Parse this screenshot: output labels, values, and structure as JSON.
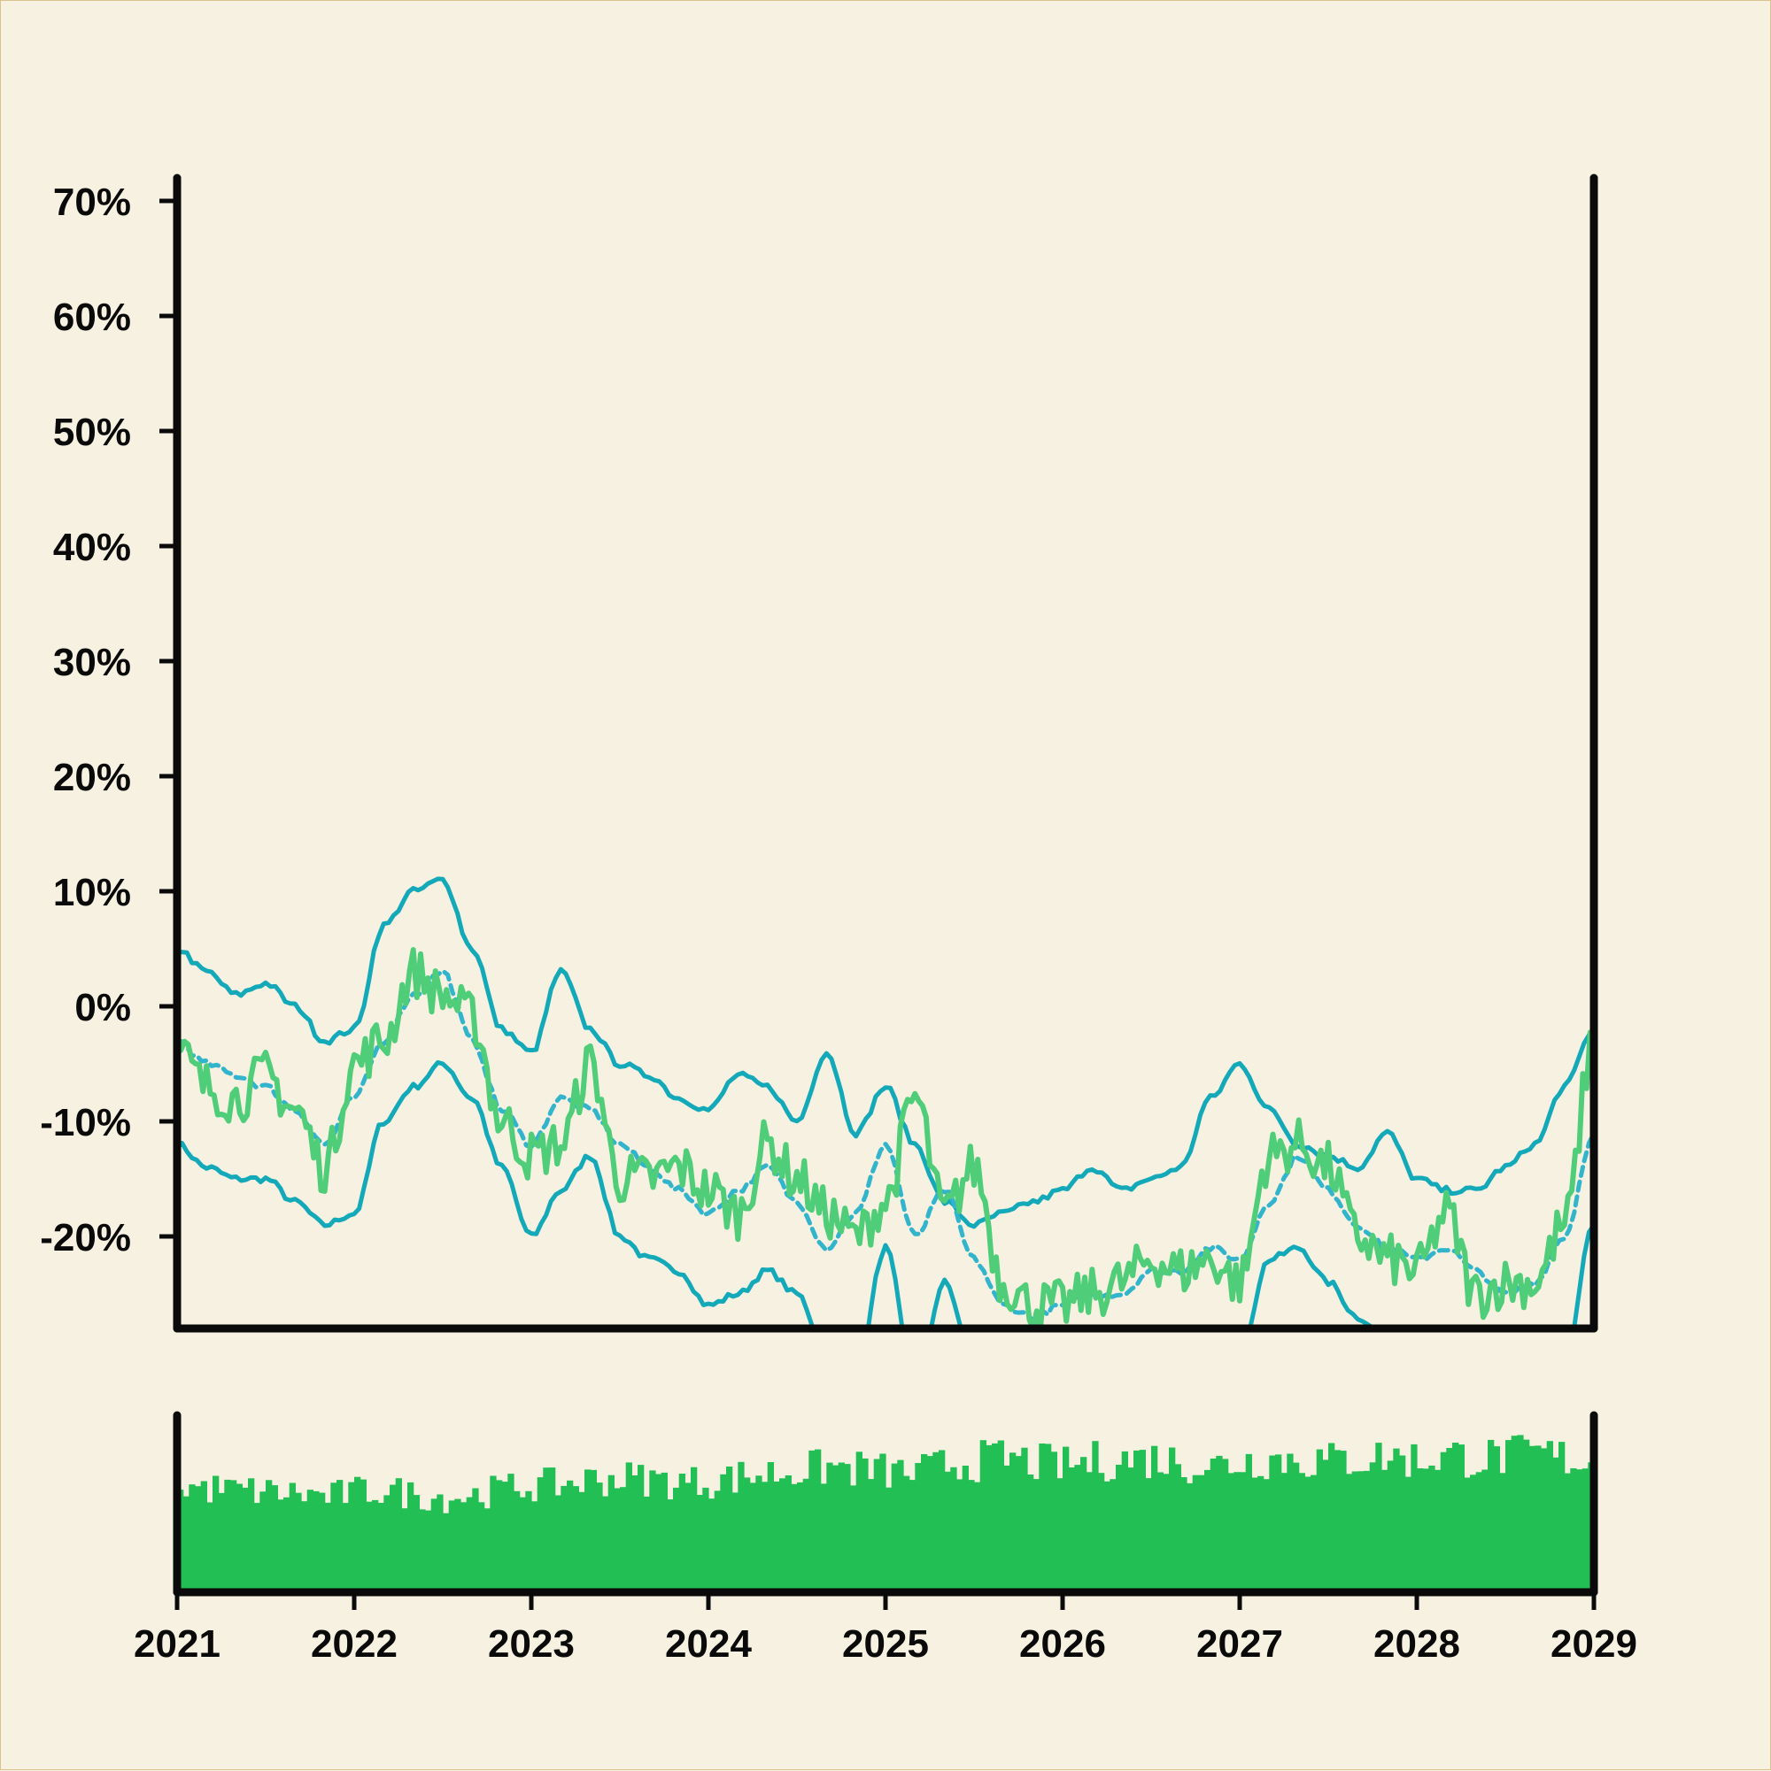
{
  "chart_data": [
    {
      "type": "line",
      "title": "",
      "xlabel": "",
      "ylabel": "",
      "x_range": [
        "2021-01-01",
        "2029-01-01"
      ],
      "x_tick_labels": [
        "2021",
        "2022",
        "2023",
        "2024",
        "2025",
        "2026",
        "2027",
        "2028",
        "2029"
      ],
      "ylim": [
        -28,
        72
      ],
      "y_ticks": [
        -20,
        -10,
        0,
        10,
        20,
        30,
        40,
        50,
        60,
        70
      ],
      "y_tick_labels": [
        "-20%",
        "-10%",
        "0%",
        "10%",
        "20%",
        "30%",
        "40%",
        "50%",
        "60%",
        "70%"
      ],
      "grid": false,
      "legend": "none",
      "colors": {
        "price": "#4fcd78",
        "bands": "#14a9b9",
        "middle": "#31b4cc",
        "axes": "#0a0a0a",
        "background": "#f6f1e1"
      },
      "series": [
        {
          "role": "price",
          "style": "solid",
          "x": [
            "2021-01",
            "2021-03",
            "2021-05",
            "2021-07",
            "2021-09",
            "2021-11",
            "2022-01",
            "2022-03",
            "2022-05",
            "2022-07",
            "2022-09",
            "2022-11",
            "2023-01",
            "2023-03",
            "2023-05",
            "2023-07",
            "2023-09",
            "2023-11",
            "2024-01",
            "2024-03",
            "2024-05",
            "2024-07",
            "2024-09",
            "2024-11",
            "2025-01",
            "2025-03",
            "2025-05",
            "2025-07",
            "2025-09",
            "2025-11",
            "2026-01",
            "2026-03",
            "2026-05",
            "2026-07",
            "2026-09",
            "2026-11",
            "2027-01",
            "2027-03",
            "2027-05",
            "2027-07",
            "2027-09",
            "2027-11",
            "2028-01",
            "2028-03",
            "2028-05",
            "2028-07",
            "2028-09",
            "2028-11",
            "2029-01"
          ],
          "values": [
            -4,
            -7,
            -8,
            -6,
            -9,
            -14,
            -5,
            -3,
            3,
            1,
            -1,
            -10,
            -13,
            -12,
            -5,
            -15,
            -15,
            -14,
            -16,
            -18,
            -12,
            -15,
            -18,
            -20,
            -17,
            -8,
            -18,
            -14,
            -24,
            -26,
            -26,
            -25,
            -24,
            -22,
            -23,
            -22,
            -24,
            -13,
            -12,
            -14,
            -20,
            -22,
            -23,
            -18,
            -25,
            -24,
            -24,
            -19,
            -3
          ]
        },
        {
          "role": "upper band",
          "style": "solid",
          "x": [
            "2021-01",
            "2021-03",
            "2021-05",
            "2021-07",
            "2021-09",
            "2021-11",
            "2022-01",
            "2022-03",
            "2022-05",
            "2022-07",
            "2022-09",
            "2022-11",
            "2023-01",
            "2023-03",
            "2023-05",
            "2023-07",
            "2023-09",
            "2023-11",
            "2024-01",
            "2024-03",
            "2024-05",
            "2024-07",
            "2024-09",
            "2024-11",
            "2025-01",
            "2025-03",
            "2025-05",
            "2025-07",
            "2025-09",
            "2025-11",
            "2026-01",
            "2026-03",
            "2026-05",
            "2026-07",
            "2026-09",
            "2026-11",
            "2027-01",
            "2027-03",
            "2027-05",
            "2027-07",
            "2027-09",
            "2027-11",
            "2028-01",
            "2028-03",
            "2028-05",
            "2028-07",
            "2028-09",
            "2028-11",
            "2029-01"
          ],
          "values": [
            5,
            3,
            1,
            2,
            0,
            -3,
            -2,
            7,
            10,
            11,
            5,
            -2,
            -4,
            3,
            -2,
            -5,
            -6,
            -8,
            -9,
            -6,
            -7,
            -10,
            -4,
            -11,
            -7,
            -12,
            -17,
            -19,
            -18,
            -17,
            -16,
            -14,
            -16,
            -15,
            -14,
            -8,
            -5,
            -9,
            -12,
            -13,
            -14,
            -11,
            -15,
            -16,
            -16,
            -14,
            -12,
            -7,
            -2
          ]
        },
        {
          "role": "middle band",
          "style": "dashed",
          "x": [
            "2021-01",
            "2021-03",
            "2021-05",
            "2021-07",
            "2021-09",
            "2021-11",
            "2022-01",
            "2022-03",
            "2022-05",
            "2022-07",
            "2022-09",
            "2022-11",
            "2023-01",
            "2023-03",
            "2023-05",
            "2023-07",
            "2023-09",
            "2023-11",
            "2024-01",
            "2024-03",
            "2024-05",
            "2024-07",
            "2024-09",
            "2024-11",
            "2025-01",
            "2025-03",
            "2025-05",
            "2025-07",
            "2025-09",
            "2025-11",
            "2026-01",
            "2026-03",
            "2026-05",
            "2026-07",
            "2026-09",
            "2026-11",
            "2027-01",
            "2027-03",
            "2027-05",
            "2027-07",
            "2027-09",
            "2027-11",
            "2028-01",
            "2028-03",
            "2028-05",
            "2028-07",
            "2028-09",
            "2028-11",
            "2029-01"
          ],
          "values": [
            -3,
            -5,
            -6,
            -7,
            -9,
            -12,
            -8,
            -3,
            1,
            3,
            -3,
            -9,
            -12,
            -8,
            -9,
            -12,
            -14,
            -16,
            -18,
            -16,
            -14,
            -17,
            -21,
            -18,
            -12,
            -20,
            -16,
            -22,
            -26,
            -27,
            -26,
            -25,
            -25,
            -23,
            -23,
            -21,
            -22,
            -17,
            -13,
            -16,
            -19,
            -21,
            -22,
            -21,
            -23,
            -25,
            -24,
            -20,
            -11
          ]
        },
        {
          "role": "lower band",
          "style": "solid",
          "x": [
            "2021-01",
            "2021-03",
            "2021-05",
            "2021-07",
            "2021-09",
            "2021-11",
            "2022-01",
            "2022-03",
            "2022-05",
            "2022-07",
            "2022-09",
            "2022-11",
            "2023-01",
            "2023-03",
            "2023-05",
            "2023-07",
            "2023-09",
            "2023-11",
            "2024-01",
            "2024-03",
            "2024-05",
            "2024-07",
            "2024-09",
            "2024-11",
            "2025-01",
            "2025-03",
            "2025-05",
            "2025-07",
            "2025-09",
            "2025-11",
            "2026-01",
            "2026-03",
            "2026-05",
            "2026-07",
            "2026-09",
            "2026-11",
            "2027-01",
            "2027-03",
            "2027-05",
            "2027-07",
            "2027-09",
            "2027-11",
            "2028-01",
            "2028-03",
            "2028-05",
            "2028-07",
            "2028-09",
            "2028-11",
            "2029-01"
          ],
          "values": [
            -12,
            -14,
            -15,
            -15,
            -17,
            -19,
            -18,
            -10,
            -7,
            -5,
            -8,
            -14,
            -20,
            -16,
            -13,
            -20,
            -22,
            -23,
            -26,
            -25,
            -23,
            -25,
            -30,
            -32,
            -21,
            -33,
            -24,
            -31,
            -34,
            -33,
            -33,
            -32,
            -32,
            -30,
            -31,
            -30,
            -30,
            -22,
            -21,
            -24,
            -27,
            -29,
            -29,
            -28,
            -30,
            -31,
            -32,
            -31,
            -19
          ]
        }
      ]
    },
    {
      "type": "bar",
      "title": "",
      "xlabel": "",
      "ylabel": "",
      "x_range": [
        "2021-01-01",
        "2029-01-01"
      ],
      "x_tick_labels": [
        "2021",
        "2022",
        "2023",
        "2024",
        "2025",
        "2026",
        "2027",
        "2028",
        "2029"
      ],
      "ylim": [
        0,
        1
      ],
      "grid": false,
      "legend": "none",
      "colors": {
        "bars": "#22bf55"
      },
      "x": [
        "2021-01",
        "2021-03",
        "2021-05",
        "2021-07",
        "2021-09",
        "2021-11",
        "2022-01",
        "2022-03",
        "2022-05",
        "2022-07",
        "2022-09",
        "2022-11",
        "2023-01",
        "2023-03",
        "2023-05",
        "2023-07",
        "2023-09",
        "2023-11",
        "2024-01",
        "2024-03",
        "2024-05",
        "2024-07",
        "2024-09",
        "2024-11",
        "2025-01",
        "2025-03",
        "2025-05",
        "2025-07",
        "2025-09",
        "2025-11",
        "2026-01",
        "2026-03",
        "2026-05",
        "2026-07",
        "2026-09",
        "2026-11",
        "2027-01",
        "2027-03",
        "2027-05",
        "2027-07",
        "2027-09",
        "2027-11",
        "2028-01",
        "2028-03",
        "2028-05",
        "2028-07",
        "2028-09",
        "2028-11",
        "2029-01"
      ],
      "values": [
        0.7,
        0.68,
        0.67,
        0.66,
        0.65,
        0.63,
        0.66,
        0.67,
        0.64,
        0.62,
        0.64,
        0.68,
        0.7,
        0.71,
        0.74,
        0.75,
        0.74,
        0.72,
        0.73,
        0.76,
        0.78,
        0.8,
        0.82,
        0.81,
        0.79,
        0.78,
        0.84,
        0.86,
        0.88,
        0.85,
        0.83,
        0.86,
        0.87,
        0.88,
        0.85,
        0.83,
        0.86,
        0.88,
        0.87,
        0.86,
        0.88,
        0.89,
        0.87,
        0.9,
        0.88,
        0.89,
        0.91,
        0.88,
        0.84
      ]
    }
  ]
}
